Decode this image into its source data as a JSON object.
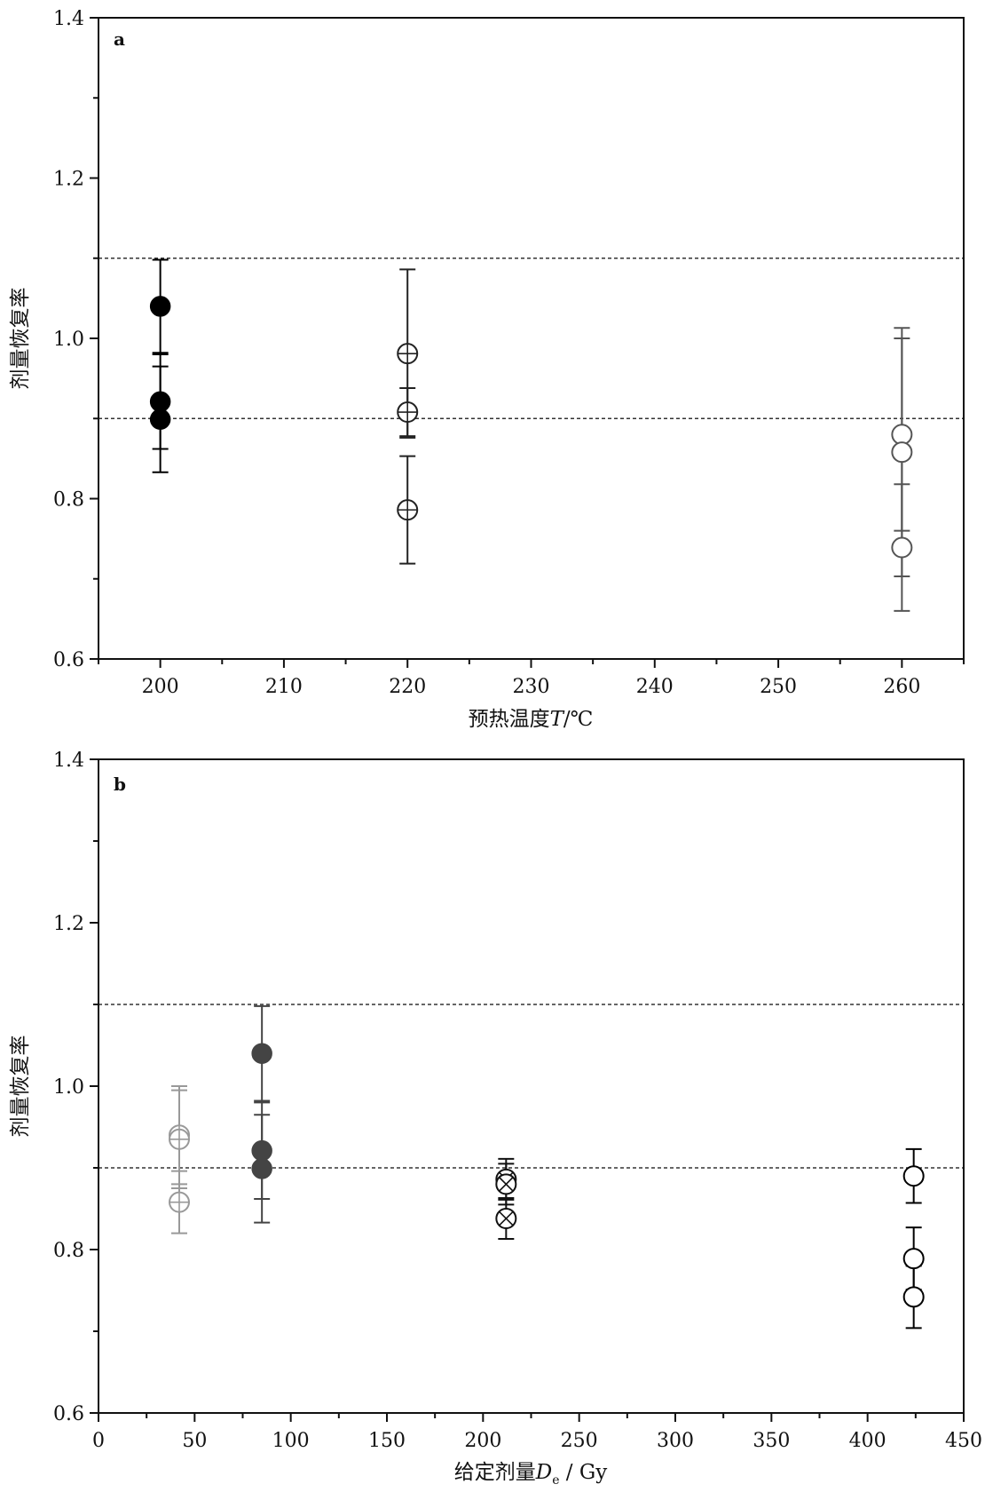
{
  "figure": {
    "panel_a": {
      "letter": "a",
      "xlabel_main": "预热温度",
      "xlabel_var": "T",
      "xlabel_unit": "/℃",
      "ylabel": "剂量恢复率"
    },
    "panel_b": {
      "letter": "b",
      "xlabel_main": "给定剂量",
      "xlabel_var": "D",
      "xlabel_sub": "e",
      "xlabel_unit": " / Gy",
      "ylabel": "剂量恢复率"
    }
  },
  "chart_data": [
    {
      "type": "scatter",
      "panel": "a",
      "title": "",
      "xlabel": "预热温度T/℃",
      "ylabel": "剂量恢复率",
      "xlim": [
        195,
        265
      ],
      "ylim": [
        0.6,
        1.4
      ],
      "xticks": [
        "200",
        "210",
        "220",
        "230",
        "240",
        "250",
        "260"
      ],
      "yticks": [
        "0.6",
        "0.8",
        "1.0",
        "1.2",
        "1.4"
      ],
      "reference_lines": [
        0.9,
        1.1
      ],
      "series": [
        {
          "marker": "filled-circle",
          "color": "#000000",
          "points": [
            {
              "x": 200,
              "y": 1.04,
              "err": 0.058
            },
            {
              "x": 200,
              "y": 0.921,
              "err": 0.059
            },
            {
              "x": 200,
              "y": 0.899,
              "err": 0.066
            }
          ]
        },
        {
          "marker": "circle-plus",
          "color": "#222222",
          "points": [
            {
              "x": 220,
              "y": 0.981,
              "err": 0.105
            },
            {
              "x": 220,
              "y": 0.908,
              "err": 0.03
            },
            {
              "x": 220,
              "y": 0.786,
              "err": 0.067
            }
          ]
        },
        {
          "marker": "open-circle",
          "color": "#555555",
          "points": [
            {
              "x": 260,
              "y": 0.88,
              "err": 0.12
            },
            {
              "x": 260,
              "y": 0.858,
              "err": 0.155
            },
            {
              "x": 260,
              "y": 0.739,
              "err": 0.079
            }
          ]
        }
      ]
    },
    {
      "type": "scatter",
      "panel": "b",
      "title": "",
      "xlabel": "给定剂量De / Gy",
      "ylabel": "剂量恢复率",
      "xlim": [
        0,
        450
      ],
      "ylim": [
        0.6,
        1.4
      ],
      "xticks": [
        "0",
        "50",
        "100",
        "150",
        "200",
        "250",
        "300",
        "350",
        "400",
        "450"
      ],
      "yticks": [
        "0.6",
        "0.8",
        "1.0",
        "1.2",
        "1.4"
      ],
      "reference_lines": [
        0.9,
        1.1
      ],
      "series": [
        {
          "marker": "circle-plus",
          "color": "#999999",
          "points": [
            {
              "x": 42,
              "y": 0.94,
              "err": 0.06
            },
            {
              "x": 42,
              "y": 0.935,
              "err": 0.06
            },
            {
              "x": 42,
              "y": 0.858,
              "err": 0.038
            }
          ]
        },
        {
          "marker": "filled-circle",
          "color": "#444444",
          "points": [
            {
              "x": 85,
              "y": 1.04,
              "err": 0.058
            },
            {
              "x": 85,
              "y": 0.921,
              "err": 0.059
            },
            {
              "x": 85,
              "y": 0.899,
              "err": 0.066
            }
          ]
        },
        {
          "marker": "circle-x",
          "color": "#111111",
          "points": [
            {
              "x": 212,
              "y": 0.886,
              "err": 0.025
            },
            {
              "x": 212,
              "y": 0.88,
              "err": 0.025
            },
            {
              "x": 212,
              "y": 0.838,
              "err": 0.025
            }
          ]
        },
        {
          "marker": "open-circle",
          "color": "#000000",
          "points": [
            {
              "x": 424,
              "y": 0.89,
              "err": 0.033
            },
            {
              "x": 424,
              "y": 0.789,
              "err": 0.038
            },
            {
              "x": 424,
              "y": 0.742,
              "err": 0.038
            }
          ]
        }
      ]
    }
  ]
}
